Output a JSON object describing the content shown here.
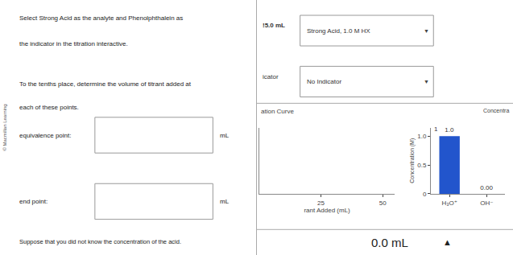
{
  "chart_data": [
    {
      "type": "line",
      "title": "ation Curve",
      "x_label": "rant Added (mL)",
      "x": [],
      "values": [],
      "xlim": [
        0,
        55
      ],
      "xticks": [
        25,
        50
      ],
      "ylim": [
        0,
        14
      ],
      "tick_labels": "x",
      "grid": false,
      "annotations": [
        "© Macmillan Learning",
        "Select Strong Acid as the analyte and Phenolphthalein as",
        "the indicator in the titration interactive.",
        "To the tenths place, determine the volume of titrant added at",
        "each of these points.",
        "equivalence point:",
        "mL",
        "end point:",
        "mL",
        "Suppose that you did not know the concentration of the acid.",
        "!5.0 mL",
        "Strong Acid, 1.0 M HX",
        "▼",
        "icator",
        "No Indicator",
        "▼",
        "0.0 mL",
        "▲"
      ]
    },
    {
      "type": "bar",
      "title": "Concentra",
      "y_label": "Concentration (M)",
      "categories": [
        "H₃O⁺",
        "OH⁻"
      ],
      "values": [
        1.0,
        0.0
      ],
      "color": "#2255cc",
      "ylim": [
        0,
        1.15
      ],
      "yticks": [
        0,
        0.5,
        {
          "value": 1.0,
          "label": "1.0"
        }
      ],
      "data_labels": true,
      "value_labels": [
        "1.0",
        "0.00"
      ],
      "annotations": [
        "1"
      ],
      "grid": false
    }
  ]
}
